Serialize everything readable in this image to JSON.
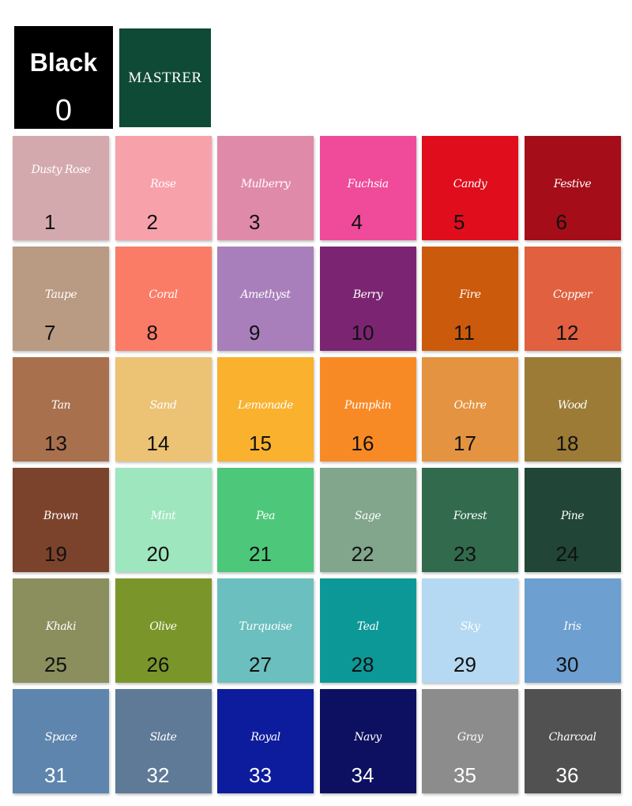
{
  "header": {
    "black": {
      "name": "Black",
      "number": "0",
      "color": "#000000"
    },
    "brand": {
      "label": "MASTRER",
      "color": "#0f4a36"
    }
  },
  "swatches": [
    {
      "name": "Dusty Rose",
      "number": "1",
      "color": "#d4a9ad",
      "number_color": "#111111"
    },
    {
      "name": "Rose",
      "number": "2",
      "color": "#f7a1ab",
      "number_color": "#111111"
    },
    {
      "name": "Mulberry",
      "number": "3",
      "color": "#e08aa9",
      "number_color": "#111111"
    },
    {
      "name": "Fuchsia",
      "number": "4",
      "color": "#f04a9a",
      "number_color": "#111111"
    },
    {
      "name": "Candy",
      "number": "5",
      "color": "#e00d1c",
      "number_color": "#111111"
    },
    {
      "name": "Festive",
      "number": "6",
      "color": "#a50d18",
      "number_color": "#111111"
    },
    {
      "name": "Taupe",
      "number": "7",
      "color": "#b99a82",
      "number_color": "#111111"
    },
    {
      "name": "Coral",
      "number": "8",
      "color": "#fb7c66",
      "number_color": "#111111"
    },
    {
      "name": "Amethyst",
      "number": "9",
      "color": "#a97fbb",
      "number_color": "#111111"
    },
    {
      "name": "Berry",
      "number": "10",
      "color": "#7b2572",
      "number_color": "#111111"
    },
    {
      "name": "Fire",
      "number": "11",
      "color": "#cc5a0c",
      "number_color": "#111111"
    },
    {
      "name": "Copper",
      "number": "12",
      "color": "#e0603f",
      "number_color": "#111111"
    },
    {
      "name": "Tan",
      "number": "13",
      "color": "#a9704d",
      "number_color": "#111111"
    },
    {
      "name": "Sand",
      "number": "14",
      "color": "#ecc274",
      "number_color": "#111111"
    },
    {
      "name": "Lemonade",
      "number": "15",
      "color": "#fab12e",
      "number_color": "#111111"
    },
    {
      "name": "Pumpkin",
      "number": "16",
      "color": "#f88a26",
      "number_color": "#111111"
    },
    {
      "name": "Ochre",
      "number": "17",
      "color": "#e49440",
      "number_color": "#111111"
    },
    {
      "name": "Wood",
      "number": "18",
      "color": "#9b7b36",
      "number_color": "#111111"
    },
    {
      "name": "Brown",
      "number": "19",
      "color": "#7c432c",
      "number_color": "#111111"
    },
    {
      "name": "Mint",
      "number": "20",
      "color": "#9ee6be",
      "number_color": "#111111"
    },
    {
      "name": "Pea",
      "number": "21",
      "color": "#4dc77a",
      "number_color": "#111111"
    },
    {
      "name": "Sage",
      "number": "22",
      "color": "#81a68b",
      "number_color": "#111111"
    },
    {
      "name": "Forest",
      "number": "23",
      "color": "#316a4d",
      "number_color": "#111111"
    },
    {
      "name": "Pine",
      "number": "24",
      "color": "#214536",
      "number_color": "#111111"
    },
    {
      "name": "Khaki",
      "number": "25",
      "color": "#8a8f5d",
      "number_color": "#111111"
    },
    {
      "name": "Olive",
      "number": "26",
      "color": "#7a962a",
      "number_color": "#111111"
    },
    {
      "name": "Turquoise",
      "number": "27",
      "color": "#6bbfbe",
      "number_color": "#111111"
    },
    {
      "name": "Teal",
      "number": "28",
      "color": "#0d9898",
      "number_color": "#111111"
    },
    {
      "name": "Sky",
      "number": "29",
      "color": "#b5d9f2",
      "number_color": "#111111"
    },
    {
      "name": "Iris",
      "number": "30",
      "color": "#6d9fd0",
      "number_color": "#111111"
    },
    {
      "name": "Space",
      "number": "31",
      "color": "#5e85ae",
      "number_color": "#ffffff"
    },
    {
      "name": "Slate",
      "number": "32",
      "color": "#5e7a97",
      "number_color": "#ffffff"
    },
    {
      "name": "Royal",
      "number": "33",
      "color": "#0d1c9c",
      "number_color": "#ffffff"
    },
    {
      "name": "Navy",
      "number": "34",
      "color": "#0d1060",
      "number_color": "#ffffff"
    },
    {
      "name": "Gray",
      "number": "35",
      "color": "#8c8c8c",
      "number_color": "#ffffff"
    },
    {
      "name": "Charcoal",
      "number": "36",
      "color": "#515151",
      "number_color": "#ffffff"
    }
  ]
}
